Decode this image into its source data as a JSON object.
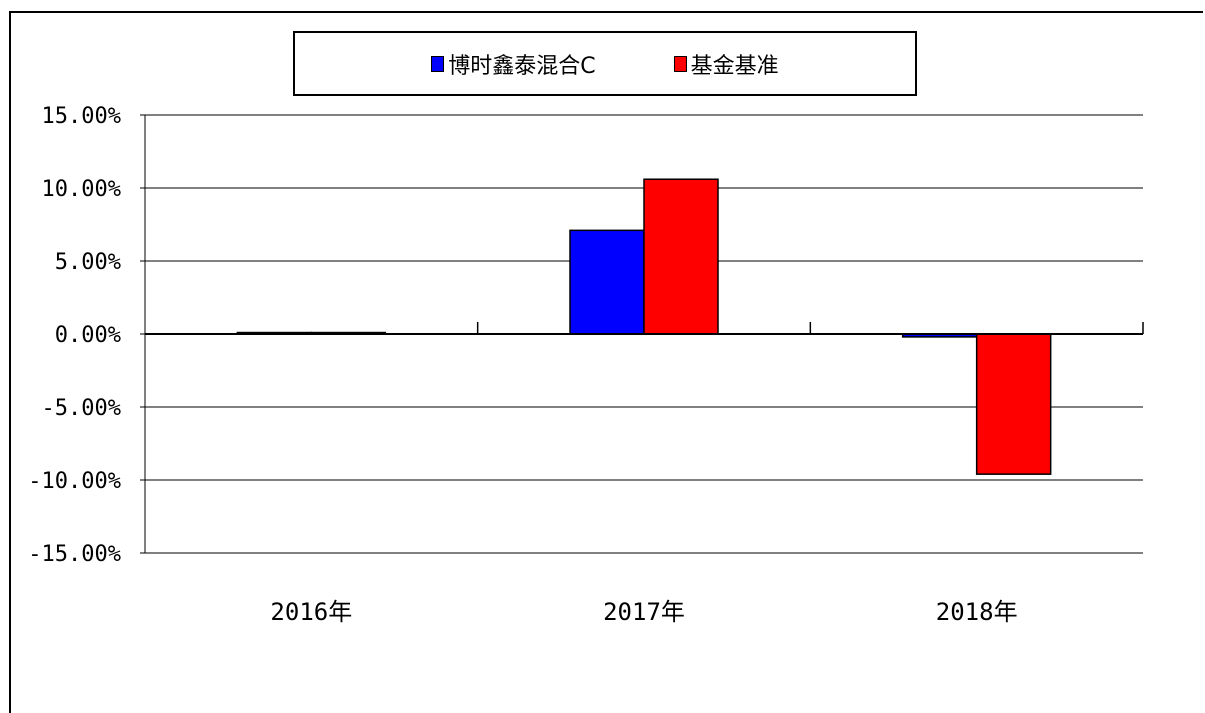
{
  "chart_data": {
    "type": "bar",
    "categories": [
      "2016年",
      "2017年",
      "2018年"
    ],
    "series": [
      {
        "name": "博时鑫泰混合C",
        "color": "#0000ff",
        "values": [
          0.1,
          7.1,
          -0.2
        ]
      },
      {
        "name": "基金基准",
        "color": "#ff0000",
        "values": [
          0.1,
          10.6,
          -9.6
        ]
      }
    ],
    "yticks": [
      "15.00%",
      "10.00%",
      "5.00%",
      "0.00%",
      "-5.00%",
      "-10.00%",
      "-15.00%"
    ],
    "ylim": [
      -15,
      15
    ],
    "grid": true,
    "legend_position": "top"
  }
}
